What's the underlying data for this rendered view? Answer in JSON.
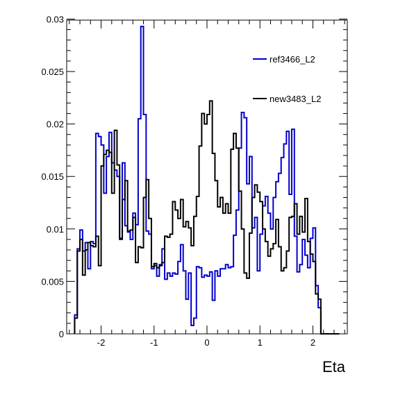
{
  "chart_data": {
    "type": "line",
    "title": "",
    "xlabel": "Eta",
    "ylabel": "",
    "xlim": [
      -2.65,
      2.65
    ],
    "ylim": [
      0,
      0.0299
    ],
    "xticks": [
      -2,
      -1,
      0,
      1,
      2
    ],
    "yticks": [
      0,
      0.005,
      0.01,
      0.015,
      0.02,
      0.025,
      0.03
    ],
    "xtick_labels": [
      "-2",
      "-1",
      "0",
      "1",
      "2"
    ],
    "ytick_labels": [
      "0",
      "0.005",
      "0.01",
      "0.015",
      "0.02",
      "0.025",
      "0.03"
    ],
    "grid": false,
    "legend_position": "top-right",
    "bins": {
      "start": -2.5,
      "width": 0.05,
      "count": 100
    },
    "series": [
      {
        "name": "ref3466_L2",
        "color": "#0000cc",
        "values": [
          0.0018,
          0.0081,
          0.0099,
          0.0079,
          0.0087,
          0.0062,
          0.0088,
          0.0086,
          0.0191,
          0.0188,
          0.018,
          0.0134,
          0.0169,
          0.0192,
          0.0163,
          0.0156,
          0.015,
          0.009,
          0.0163,
          0.0103,
          0.0097,
          0.009,
          0.0115,
          0.0104,
          0.0205,
          0.0293,
          0.0209,
          0.0098,
          0.0095,
          0.0062,
          0.0065,
          0.0055,
          0.0066,
          0.0081,
          0.0052,
          0.0058,
          0.0055,
          0.0058,
          0.0057,
          0.0069,
          0.0085,
          0.006,
          0.0033,
          0.0058,
          0.0008,
          0.0015,
          0.0064,
          0.0063,
          0.0054,
          0.0056,
          0.0055,
          0.0059,
          0.0032,
          0.006,
          0.0055,
          0.0062,
          0.0062,
          0.0066,
          0.0063,
          0.0064,
          0.0094,
          0.0118,
          0.0177,
          0.0211,
          0.0206,
          0.0143,
          0.0169,
          0.0101,
          0.0111,
          0.006,
          0.0095,
          0.0122,
          0.0131,
          0.0115,
          0.01,
          0.013,
          0.0145,
          0.0153,
          0.0168,
          0.0181,
          0.0193,
          0.0133,
          0.0195,
          0.0093,
          0.0059,
          0.0066,
          0.009,
          0.0075,
          0.0063,
          0.0091,
          0.0101,
          0.0046,
          0.0025,
          0.0,
          0.0,
          0.0,
          0.0,
          0.0,
          0.0,
          0.0
        ]
      },
      {
        "name": "new3483_L2",
        "color": "#000000",
        "values": [
          0.0015,
          0.0079,
          0.009,
          0.0056,
          0.008,
          0.0087,
          0.0084,
          0.0083,
          0.0093,
          0.0065,
          0.016,
          0.0171,
          0.0175,
          0.0173,
          0.0134,
          0.0194,
          0.0161,
          0.0091,
          0.0128,
          0.0146,
          0.0098,
          0.0099,
          0.0111,
          0.0068,
          0.0083,
          0.0082,
          0.013,
          0.0147,
          0.011,
          0.0064,
          0.0067,
          0.0063,
          0.0065,
          0.0068,
          0.0093,
          0.0092,
          0.0095,
          0.0126,
          0.0118,
          0.011,
          0.0128,
          0.0102,
          0.0107,
          0.0101,
          0.0084,
          0.0112,
          0.0131,
          0.0179,
          0.021,
          0.02,
          0.0209,
          0.0222,
          0.0172,
          0.0146,
          0.0121,
          0.013,
          0.0115,
          0.0124,
          0.0115,
          0.0176,
          0.0191,
          0.0177,
          0.0136,
          0.01,
          0.0058,
          0.0053,
          0.0096,
          0.013,
          0.0142,
          0.0135,
          0.0126,
          0.01,
          0.0088,
          0.0074,
          0.0081,
          0.0086,
          0.0109,
          0.0083,
          0.006,
          0.0063,
          0.0079,
          0.0111,
          0.0112,
          0.0124,
          0.0095,
          0.0112,
          0.0097,
          0.0129,
          0.0088,
          0.0076,
          0.0069,
          0.0038,
          0.0033,
          0.0,
          0.0,
          0.0,
          0.0,
          0.0,
          0.0,
          0.0
        ]
      }
    ]
  }
}
